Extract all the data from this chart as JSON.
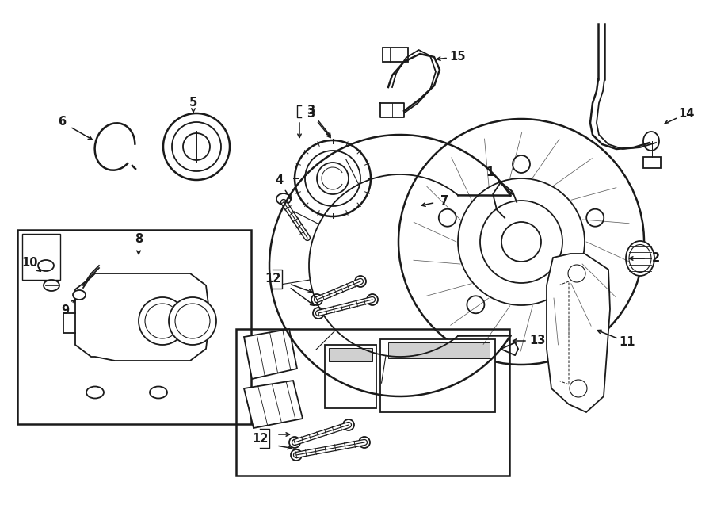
{
  "bg_color": "#ffffff",
  "line_color": "#1a1a1a",
  "fig_w": 9.0,
  "fig_h": 6.61,
  "dpi": 100,
  "parts_labels": {
    "1": [
      615,
      215,
      650,
      255
    ],
    "2": [
      820,
      330,
      790,
      330
    ],
    "3": [
      390,
      140,
      415,
      175
    ],
    "4": [
      355,
      225,
      370,
      210
    ],
    "5": [
      240,
      130,
      240,
      155
    ],
    "6": [
      80,
      155,
      115,
      185
    ],
    "7": [
      560,
      250,
      530,
      255
    ],
    "8": [
      175,
      305,
      175,
      320
    ],
    "9": [
      85,
      390,
      100,
      375
    ],
    "10": [
      40,
      335,
      68,
      345
    ],
    "11": [
      790,
      430,
      752,
      415
    ],
    "12a": [
      345,
      355,
      400,
      370
    ],
    "12b": [
      330,
      560,
      395,
      545
    ],
    "13": [
      678,
      435,
      645,
      415
    ],
    "14": [
      868,
      145,
      835,
      160
    ],
    "15": [
      578,
      75,
      543,
      80
    ]
  }
}
